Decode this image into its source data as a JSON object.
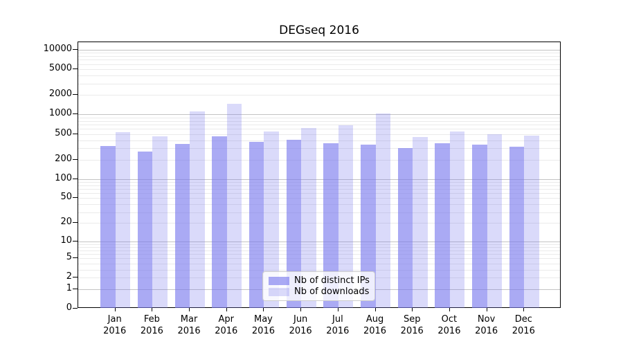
{
  "title": "DEGseq 2016",
  "chart_data": {
    "type": "bar",
    "title": "DEGseq 2016",
    "months": [
      "Jan",
      "Feb",
      "Mar",
      "Apr",
      "May",
      "Jun",
      "Jul",
      "Aug",
      "Sep",
      "Oct",
      "Nov",
      "Dec"
    ],
    "year": "2016",
    "series": [
      {
        "name": "Nb of distinct IPs",
        "values": [
          325,
          270,
          350,
          465,
          380,
          410,
          360,
          340,
          300,
          360,
          345,
          320
        ],
        "fill": "rgba(120,120,238,0.63)"
      },
      {
        "name": "Nb of downloads",
        "values": [
          530,
          465,
          1110,
          1480,
          540,
          625,
          690,
          1025,
          450,
          550,
          490,
          475
        ],
        "fill": "rgba(120,120,238,0.27)"
      }
    ],
    "y_axis": {
      "tick_labels": [
        "0",
        "1",
        "2",
        "5",
        "10",
        "20",
        "50",
        "100",
        "200",
        "500",
        "1000",
        "2000",
        "5000",
        "10000"
      ],
      "tick_values": [
        0,
        1,
        2,
        5,
        10,
        20,
        50,
        100,
        200,
        500,
        1000,
        2000,
        5000,
        10000
      ],
      "scale": "log10(value+1)",
      "major_gridlines_at": [
        1,
        10,
        100,
        1000,
        10000
      ]
    },
    "grid": {
      "major_color": "#c3c3c3",
      "minor_color": "#eaeaea"
    },
    "legend_position": "lower center",
    "colors": {
      "axis": "#000000",
      "background": "#ffffff",
      "bar_dark_rendered": "#aaaaf4",
      "bar_light_rendered": "#dadaf9"
    }
  }
}
